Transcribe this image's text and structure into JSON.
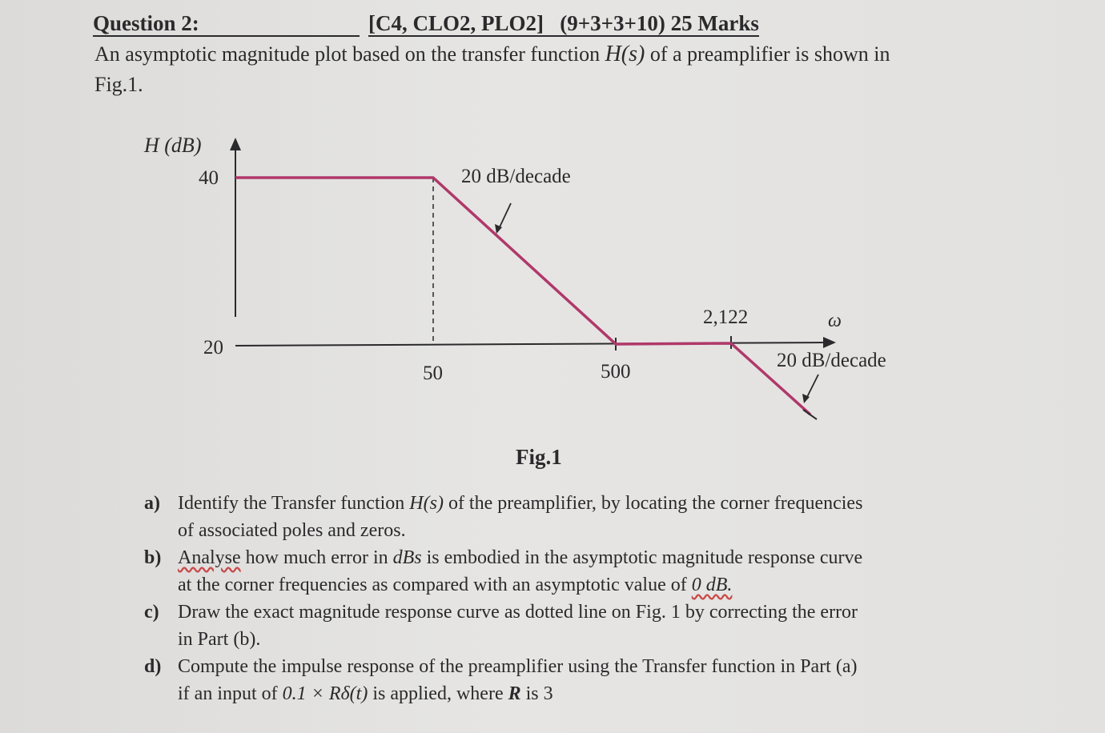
{
  "question": {
    "label": "Question 2:",
    "codes": "[C4, CLO2, PLO2]",
    "marks": "(9+3+3+10) 25 Marks",
    "intro_before": "An asymptotic magnitude plot based on the transfer function ",
    "intro_math": "H(s)",
    "intro_after": " of a preamplifier is shown in",
    "intro_line2": "Fig.1."
  },
  "figure": {
    "ylabel": "H (dB)",
    "y_tick_top": "40",
    "y_tick_bottom": "20",
    "x_tick_1": "50",
    "x_tick_2": "500",
    "x_tick_3": "2,122",
    "x_axis_label": "ω",
    "slope_label_1": "20 dB/decade",
    "slope_label_2": "20 dB/decade",
    "caption": "Fig.1",
    "line_color": "#b0386a"
  },
  "parts": {
    "a_letter": "a)",
    "a_before": "Identify the Transfer function ",
    "a_math": "H(s)",
    "a_after": " of the preamplifier, by locating the corner frequencies",
    "a_line2": "of associated poles and zeros.",
    "b_letter": "b)",
    "b_word": "Analyse",
    "b_mid1": " how much error in ",
    "b_math": "dBs",
    "b_mid2": " is embodied in the asymptotic magnitude response curve",
    "b_line2_before": "at the corner frequencies as compared with an asymptotic value of ",
    "b_line2_math": "0 dB.",
    "c_letter": "c)",
    "c_line1": "Draw the exact magnitude response curve as dotted line on Fig. 1 by correcting the error",
    "c_line2": "in Part (b).",
    "d_letter": "d)",
    "d_line1": "Compute the impulse response of the preamplifier using the Transfer function in Part (a)",
    "d_before": "if an input of ",
    "d_math": "0.1 × Rδ(t)",
    "d_mid": " is applied, where ",
    "d_bold": "R",
    "d_after": " is 3"
  }
}
